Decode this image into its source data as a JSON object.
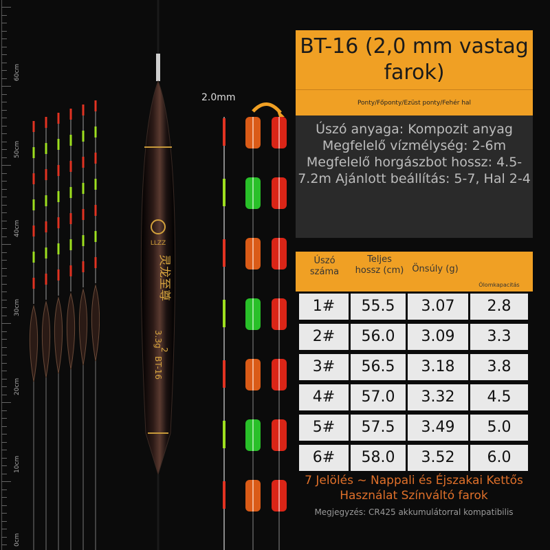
{
  "ruler": {
    "labels": [
      "60cm",
      "50cm",
      "40cm",
      "30cm",
      "20cm",
      "10cm",
      "0cm"
    ]
  },
  "float_branding": {
    "logo_text": "LLZZ",
    "name_cn": "灵龙至尊",
    "weight_mark": "3.3g",
    "number_mark": "2",
    "model_mark": "BT-16"
  },
  "tail_callout": {
    "diameter_label": "2.0mm"
  },
  "panel": {
    "title": "BT-16 (2,0 mm vastag farok)",
    "target_fish": "Ponty/Főponty/Ezüst ponty/Fehér hal",
    "description": "Úszó anyaga: Kompozit anyag Megfelelő vízmélység: 2-6m Megfelelő horgászbot hossz: 4.5-7.2m Ajánlott beállítás: 5-7, Hal 2-4",
    "table": {
      "headers": [
        "Úszó száma",
        "Teljes hossz (cm)",
        "Önsúly (g)",
        "Ólomkapacitás"
      ],
      "rows": [
        [
          "1#",
          "55.5",
          "3.07",
          "2.8"
        ],
        [
          "2#",
          "56.0",
          "3.09",
          "3.3"
        ],
        [
          "3#",
          "56.5",
          "3.18",
          "3.8"
        ],
        [
          "4#",
          "57.0",
          "3.32",
          "4.5"
        ],
        [
          "5#",
          "57.5",
          "3.49",
          "5.0"
        ],
        [
          "6#",
          "58.0",
          "3.52",
          "6.0"
        ]
      ]
    },
    "footer_main": "7 Jelölés ~ Nappali és Éjszakai Kettős Használat Színváltó farok",
    "footer_note": "Megjegyzés: CR425 akkumulátorral kompatibilis"
  },
  "colors": {
    "accent": "#f0a024",
    "tail_red": "#e23322",
    "tail_green": "#9ee01f",
    "footer_text": "#e0702a"
  }
}
